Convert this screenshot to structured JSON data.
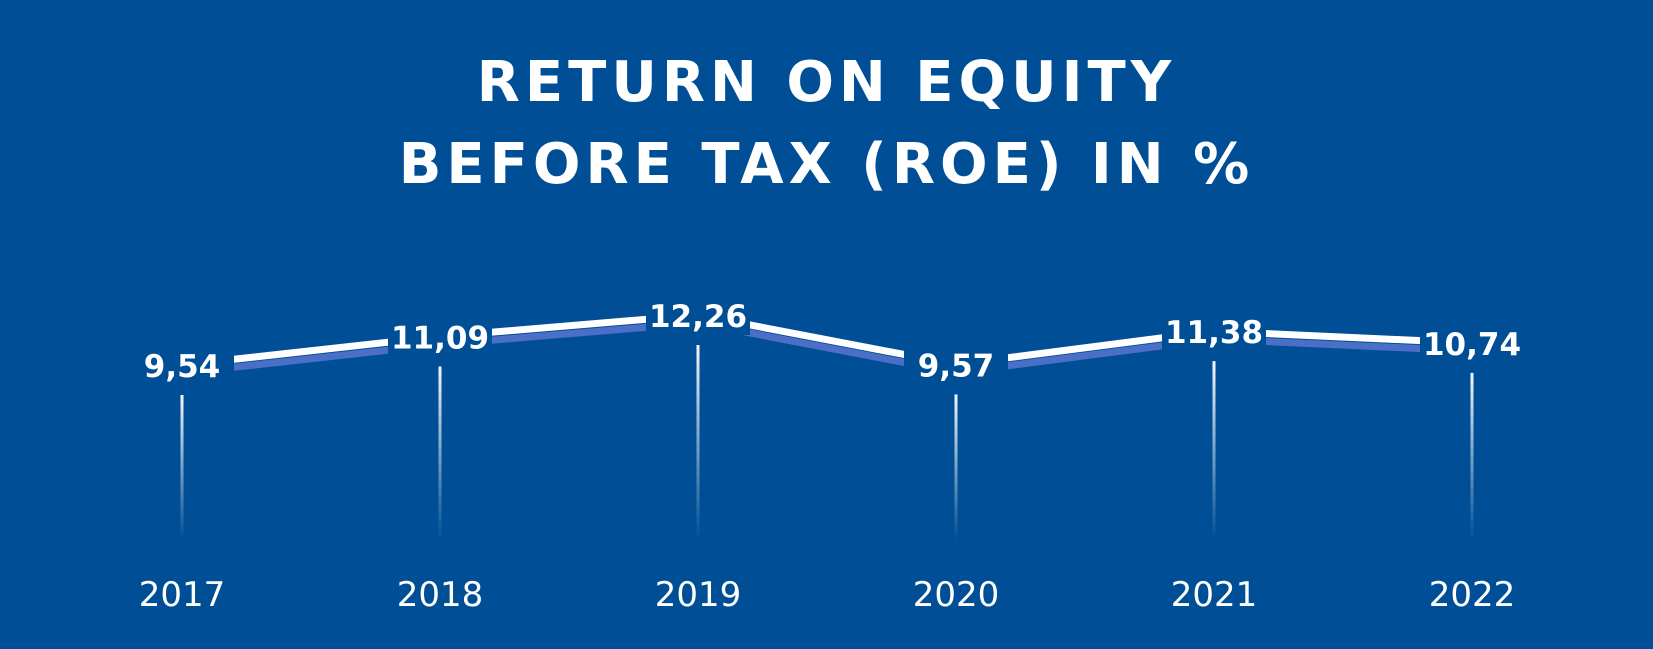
{
  "colors": {
    "background": "#004f96",
    "line": "#ffffff",
    "line_shadow": "#4b6fc6",
    "text": "#ffffff"
  },
  "chart_data": {
    "type": "line",
    "title_lines": [
      "RETURN ON EQUITY",
      "BEFORE TAX (ROE) IN %"
    ],
    "categories": [
      "2017",
      "2018",
      "2019",
      "2020",
      "2021",
      "2022"
    ],
    "values": [
      9.54,
      11.09,
      12.26,
      9.57,
      11.38,
      10.74
    ],
    "value_labels": [
      "9,54",
      "11,09",
      "12,26",
      "9,57",
      "11,38",
      "10,74"
    ],
    "xlabel": "",
    "ylabel": "",
    "grid": false,
    "legend": "none"
  }
}
